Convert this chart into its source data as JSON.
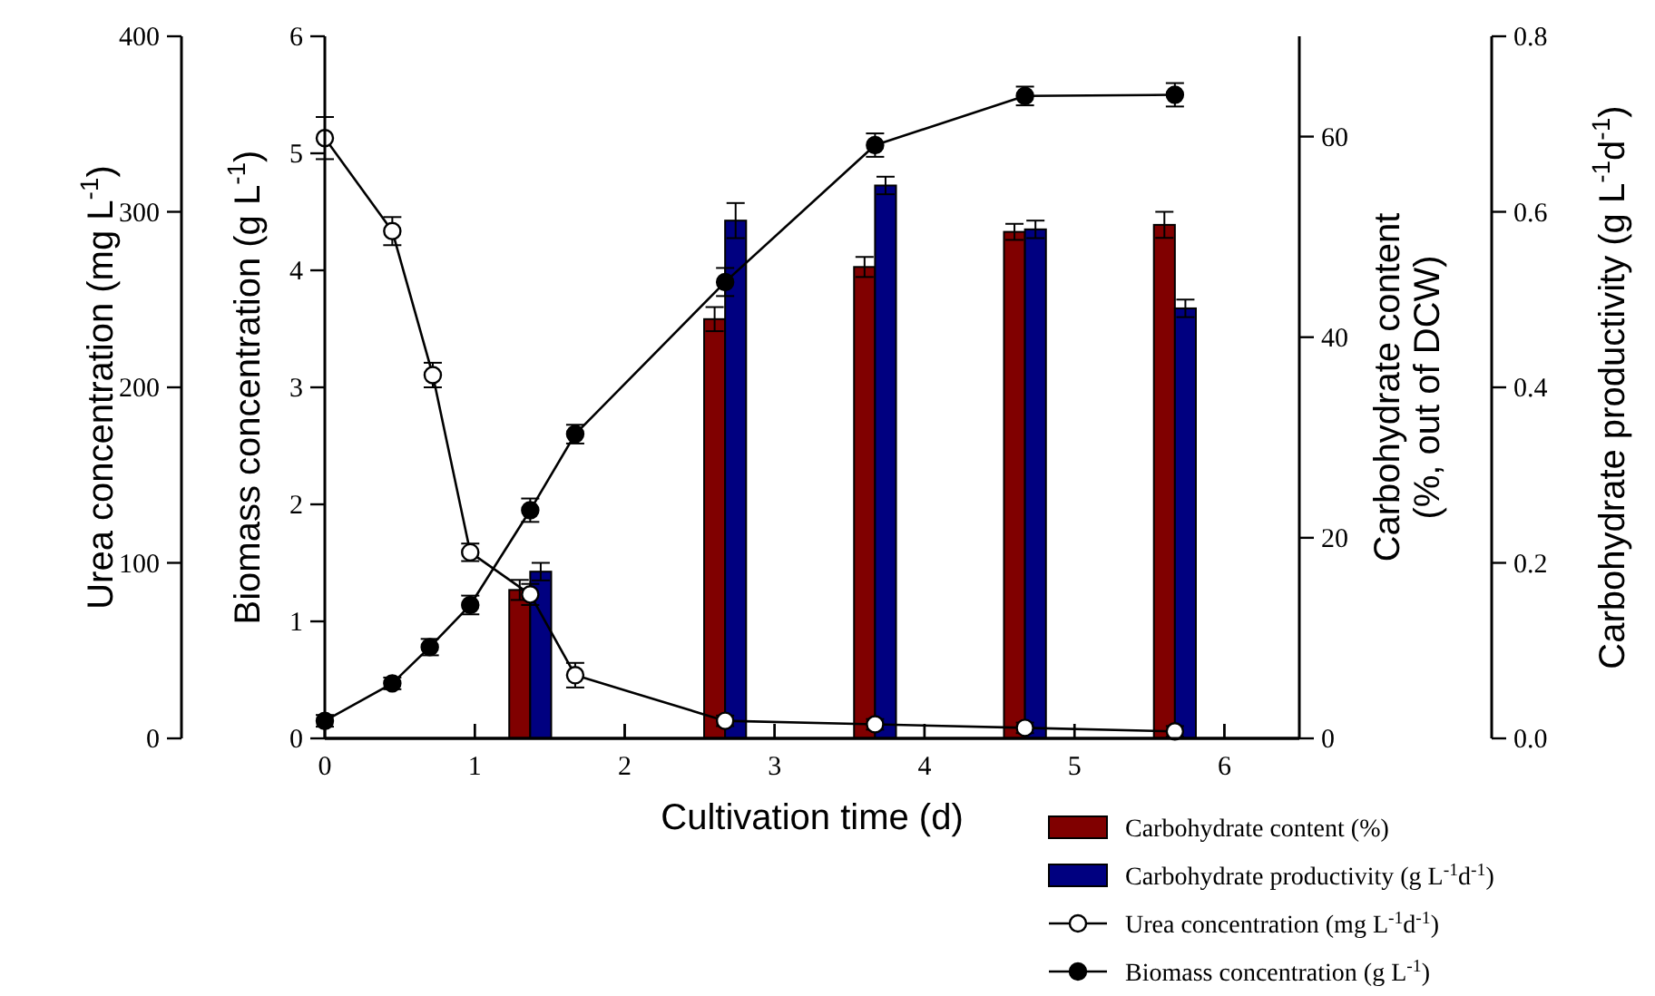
{
  "chart_data": [
    {
      "type": "bar",
      "xlabel": "Cultivation time (d)",
      "xlim": [
        0,
        6.5
      ],
      "xticks": [
        0,
        1,
        2,
        3,
        4,
        5,
        6
      ],
      "y2label": "Carbohydrate content\n(%, out of DCW)",
      "y2lim": [
        0,
        70
      ],
      "y2ticks": [
        0,
        20,
        40,
        60
      ],
      "y3label": "Carbohydrate productivity (g L$^{-1}$d$^{-1}$)",
      "y3lim": [
        0,
        0.8
      ],
      "y3ticks": [
        {
          "value": 0,
          "label": "0.0"
        },
        0.2,
        0.4,
        0.6,
        0.8
      ],
      "legend": "bottom right",
      "series": [
        {
          "name": "Carbohydrate content (%)",
          "axis": "y2",
          "color": "#800000",
          "x": [
            1.37,
            2.67,
            3.67,
            4.67,
            5.67
          ],
          "values": [
            14.8,
            41.8,
            47,
            50.5,
            51.2
          ],
          "errors": [
            1,
            1.2,
            1,
            0.8,
            1.3
          ]
        },
        {
          "name": "Carbohydrate productivity (g L$^{-1}$d$^{-1}$)",
          "axis": "y3",
          "color": "#000080",
          "x": [
            1.37,
            2.67,
            3.67,
            4.67,
            5.67
          ],
          "values": [
            0.19,
            0.59,
            0.63,
            0.58,
            0.49
          ],
          "errors": [
            0.01,
            0.02,
            0.01,
            0.01,
            0.01
          ]
        }
      ]
    },
    {
      "type": "line",
      "xlim": [
        0,
        6.5
      ],
      "xticks": [
        0,
        1,
        2,
        3,
        4,
        5,
        6
      ],
      "tick_labels": "y",
      "ylabel": "Biomass concentration (g L$^{-1}$)",
      "ylim": [
        0,
        6
      ],
      "yticks": [
        0,
        1,
        2,
        3,
        4,
        5,
        6
      ],
      "y3label": "Urea concentration (mg L$^{-1}$)",
      "y3lim": [
        0,
        400
      ],
      "y3ticks": [
        0,
        100,
        200,
        300,
        400
      ],
      "legend": "bottom right",
      "marker": "circle",
      "series": [
        {
          "name": "Urea concentration (mg L$^{-1}$d$^{-1}$)",
          "axis": "y3",
          "color": "#000000",
          "colors": [
            "#ffffff",
            "#ffffff",
            "#ffffff",
            "#ffffff",
            "#ffffff",
            "#ffffff",
            "#ffffff",
            "#ffffff",
            "#ffffff",
            "#ffffff"
          ],
          "x": [
            0,
            0.45,
            0.72,
            0.97,
            1.37,
            1.67,
            2.67,
            3.67,
            4.67,
            5.67
          ],
          "values": [
            342,
            289,
            207,
            106,
            82,
            36,
            10,
            8,
            6,
            4
          ],
          "errors": [
            12,
            8,
            7,
            5,
            6,
            7,
            3,
            3,
            3,
            3
          ]
        },
        {
          "name": "Biomass concentration (g L$^{-1}$)",
          "color": "#000000",
          "x": [
            0,
            0.45,
            0.7,
            0.97,
            1.37,
            1.67,
            2.67,
            3.67,
            4.67,
            5.67
          ],
          "values": [
            0.15,
            0.47,
            0.78,
            1.14,
            1.95,
            2.6,
            3.9,
            5.07,
            5.49,
            5.5
          ],
          "errors": [
            0.05,
            0.05,
            0.07,
            0.08,
            0.1,
            0.08,
            0.12,
            0.1,
            0.08,
            0.1
          ]
        }
      ]
    }
  ]
}
